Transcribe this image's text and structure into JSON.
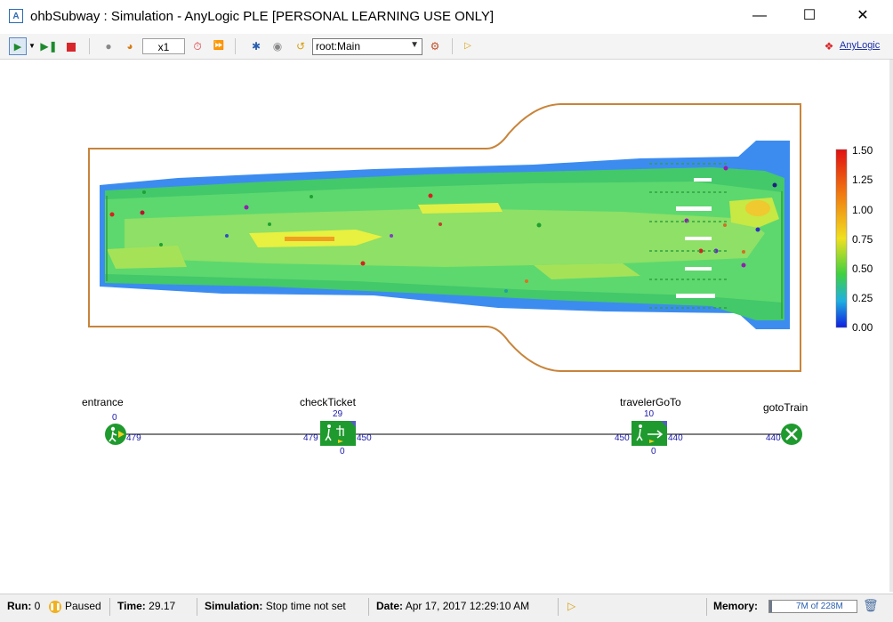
{
  "window": {
    "title": "ohbSubway : Simulation - AnyLogic PLE [PERSONAL LEARNING USE ONLY]",
    "minimize_icon": "minimize-icon",
    "maximize_icon": "maximize-icon",
    "close_icon": "close-icon"
  },
  "toolbar": {
    "speed": "x1",
    "agent_select": "root:Main",
    "brand": "AnyLogic"
  },
  "legend": {
    "labels": [
      "1.50",
      "1.25",
      "1.00",
      "0.75",
      "0.50",
      "0.25",
      "0.00"
    ]
  },
  "flowchart": {
    "entrance": {
      "label": "entrance",
      "top": "0",
      "out": "479"
    },
    "checkTicket": {
      "label": "checkTicket",
      "top": "29",
      "in": "479",
      "out": "450",
      "bottom": "0"
    },
    "travelerGoTo": {
      "label": "travelerGoTo",
      "top": "10",
      "in": "450",
      "out": "440",
      "bottom": "0"
    },
    "gotoTrain": {
      "label": "gotoTrain",
      "in": "440"
    }
  },
  "status": {
    "run_label": "Run:",
    "run_value": "0",
    "state": "Paused",
    "time_label": "Time:",
    "time_value": "29.17",
    "simulation_label": "Simulation:",
    "simulation_value": "Stop time not set",
    "date_label": "Date:",
    "date_value": "Apr 17, 2017 12:29:10 AM",
    "memory_label": "Memory:",
    "memory_value": "7M of 228M",
    "memory_fraction": 0.03
  },
  "colors": {
    "wall": "#c8843a",
    "link": "#000000",
    "block_green": "#1f9a2e"
  }
}
